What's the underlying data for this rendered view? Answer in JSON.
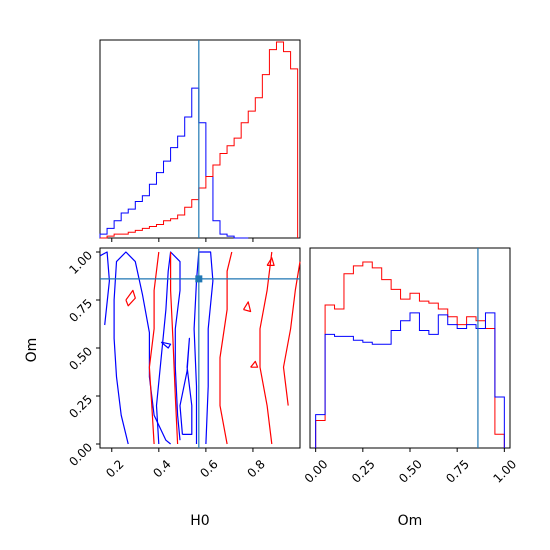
{
  "chart_data": [
    {
      "panel": "hist-H0",
      "type": "histogram",
      "xlim": [
        0.15,
        1.0
      ],
      "truth": 0.57,
      "xticks": [
        0.2,
        0.4,
        0.6,
        0.8
      ],
      "series": [
        {
          "color": "#0000ff",
          "x": [
            0.15,
            0.18,
            0.21,
            0.24,
            0.27,
            0.3,
            0.33,
            0.36,
            0.39,
            0.42,
            0.45,
            0.48,
            0.51,
            0.54,
            0.57,
            0.6,
            0.63,
            0.66,
            0.69,
            0.72,
            0.75
          ],
          "values": [
            0.02,
            0.05,
            0.09,
            0.13,
            0.15,
            0.19,
            0.22,
            0.28,
            0.34,
            0.4,
            0.47,
            0.53,
            0.63,
            0.78,
            0.6,
            0.32,
            0.09,
            0.02,
            0.01,
            0,
            0
          ]
        },
        {
          "color": "#ff0000",
          "x": [
            0.15,
            0.18,
            0.21,
            0.24,
            0.27,
            0.3,
            0.33,
            0.36,
            0.39,
            0.42,
            0.45,
            0.48,
            0.51,
            0.54,
            0.57,
            0.6,
            0.63,
            0.66,
            0.69,
            0.72,
            0.75,
            0.78,
            0.81,
            0.84,
            0.87,
            0.9,
            0.93,
            0.96
          ],
          "values": [
            0,
            0.01,
            0.02,
            0.02,
            0.03,
            0.04,
            0.05,
            0.06,
            0.07,
            0.09,
            0.1,
            0.12,
            0.16,
            0.2,
            0.26,
            0.32,
            0.38,
            0.44,
            0.48,
            0.52,
            0.6,
            0.66,
            0.73,
            0.85,
            0.98,
            1.02,
            0.97,
            0.88
          ]
        }
      ]
    },
    {
      "panel": "contour-H0-Om",
      "type": "contour",
      "xlim": [
        0.15,
        1.0
      ],
      "ylim": [
        0.0,
        1.0
      ],
      "xlabel": "H0",
      "ylabel": "Om",
      "xticks": [
        0.2,
        0.4,
        0.6,
        0.8
      ],
      "yticks": [
        0.0,
        0.25,
        0.5,
        0.75,
        1.0
      ],
      "truth": {
        "x": 0.57,
        "y": 0.86
      },
      "series": [
        {
          "color": "#0000ff",
          "paths": [
            [
              [
                0.27,
                0.0
              ],
              [
                0.24,
                0.15
              ],
              [
                0.22,
                0.35
              ],
              [
                0.21,
                0.55
              ],
              [
                0.21,
                0.75
              ],
              [
                0.22,
                0.95
              ],
              [
                0.26,
                1.0
              ],
              [
                0.3,
                0.95
              ],
              [
                0.33,
                0.78
              ],
              [
                0.36,
                0.58
              ],
              [
                0.36,
                0.35
              ],
              [
                0.38,
                0.15
              ],
              [
                0.43,
                0.02
              ],
              [
                0.45,
                0.0
              ]
            ],
            [
              [
                0.4,
                0.0
              ],
              [
                0.39,
                0.2
              ],
              [
                0.41,
                0.45
              ],
              [
                0.43,
                0.7
              ],
              [
                0.44,
                0.9
              ],
              [
                0.45,
                1.0
              ],
              [
                0.49,
                0.95
              ],
              [
                0.49,
                0.8
              ],
              [
                0.47,
                0.6
              ],
              [
                0.47,
                0.4
              ],
              [
                0.48,
                0.15
              ],
              [
                0.49,
                0.02
              ]
            ],
            [
              [
                0.5,
                0.05
              ],
              [
                0.49,
                0.2
              ],
              [
                0.52,
                0.38
              ],
              [
                0.53,
                0.55
              ],
              [
                0.52,
                0.4
              ],
              [
                0.54,
                0.2
              ],
              [
                0.54,
                0.05
              ],
              [
                0.5,
                0.05
              ]
            ],
            [
              [
                0.56,
                0.0
              ],
              [
                0.56,
                0.3
              ],
              [
                0.55,
                0.6
              ],
              [
                0.56,
                0.85
              ],
              [
                0.57,
                1.0
              ],
              [
                0.62,
                1.0
              ],
              [
                0.63,
                0.85
              ],
              [
                0.61,
                0.6
              ],
              [
                0.61,
                0.3
              ],
              [
                0.6,
                0.0
              ]
            ],
            [
              [
                0.17,
                0.62
              ],
              [
                0.19,
                0.85
              ],
              [
                0.18,
                1.0
              ],
              [
                0.15,
                0.98
              ]
            ],
            [
              [
                0.41,
                0.53
              ],
              [
                0.45,
                0.52
              ],
              [
                0.44,
                0.5
              ],
              [
                0.41,
                0.53
              ]
            ]
          ]
        },
        {
          "color": "#ff0000",
          "paths": [
            [
              [
                0.38,
                0.0
              ],
              [
                0.37,
                0.2
              ],
              [
                0.36,
                0.4
              ],
              [
                0.38,
                0.6
              ],
              [
                0.38,
                0.8
              ],
              [
                0.4,
                1.0
              ]
            ],
            [
              [
                0.48,
                0.0
              ],
              [
                0.47,
                0.25
              ],
              [
                0.46,
                0.55
              ],
              [
                0.45,
                0.8
              ],
              [
                0.45,
                1.0
              ]
            ],
            [
              [
                0.69,
                0.0
              ],
              [
                0.66,
                0.2
              ],
              [
                0.66,
                0.45
              ],
              [
                0.69,
                0.7
              ],
              [
                0.69,
                0.9
              ],
              [
                0.71,
                1.0
              ]
            ],
            [
              [
                0.88,
                0.0
              ],
              [
                0.86,
                0.2
              ],
              [
                0.83,
                0.4
              ],
              [
                0.83,
                0.6
              ],
              [
                0.86,
                0.8
              ],
              [
                0.88,
                1.0
              ]
            ],
            [
              [
                0.95,
                0.2
              ],
              [
                0.93,
                0.4
              ],
              [
                0.96,
                0.6
              ],
              [
                0.98,
                0.8
              ],
              [
                1.0,
                0.95
              ]
            ],
            [
              [
                0.26,
                0.75
              ],
              [
                0.29,
                0.8
              ],
              [
                0.3,
                0.76
              ],
              [
                0.27,
                0.72
              ],
              [
                0.26,
                0.75
              ]
            ],
            [
              [
                0.76,
                0.7
              ],
              [
                0.78,
                0.74
              ],
              [
                0.79,
                0.69
              ],
              [
                0.76,
                0.7
              ]
            ],
            [
              [
                0.79,
                0.4
              ],
              [
                0.81,
                0.43
              ],
              [
                0.82,
                0.4
              ],
              [
                0.79,
                0.4
              ]
            ],
            [
              [
                0.86,
                0.93
              ],
              [
                0.88,
                0.97
              ],
              [
                0.89,
                0.93
              ],
              [
                0.86,
                0.93
              ]
            ]
          ]
        }
      ]
    },
    {
      "panel": "hist-Om",
      "type": "histogram",
      "xlim": [
        -0.03,
        1.03
      ],
      "xlabel": "Om",
      "truth": 0.86,
      "xticks": [
        0.0,
        0.25,
        0.5,
        0.75,
        1.0
      ],
      "series": [
        {
          "color": "#ff0000",
          "x": [
            0.0,
            0.05,
            0.1,
            0.15,
            0.2,
            0.25,
            0.3,
            0.35,
            0.4,
            0.45,
            0.5,
            0.55,
            0.6,
            0.65,
            0.7,
            0.75,
            0.8,
            0.85,
            0.9,
            0.95
          ],
          "values": [
            0.13,
            0.72,
            0.7,
            0.88,
            0.92,
            0.94,
            0.91,
            0.85,
            0.8,
            0.75,
            0.78,
            0.74,
            0.73,
            0.7,
            0.66,
            0.62,
            0.66,
            0.64,
            0.6,
            0.06
          ]
        },
        {
          "color": "#0000ff",
          "x": [
            0.0,
            0.05,
            0.1,
            0.15,
            0.2,
            0.25,
            0.3,
            0.35,
            0.4,
            0.45,
            0.5,
            0.55,
            0.6,
            0.65,
            0.7,
            0.75,
            0.8,
            0.85,
            0.9,
            0.95
          ],
          "values": [
            0.16,
            0.57,
            0.56,
            0.56,
            0.54,
            0.53,
            0.52,
            0.52,
            0.59,
            0.64,
            0.68,
            0.59,
            0.57,
            0.67,
            0.62,
            0.6,
            0.62,
            0.6,
            0.68,
            0.25
          ]
        }
      ]
    }
  ],
  "colors": {
    "truth_line": "#1f77b4",
    "axis": "#000000"
  }
}
